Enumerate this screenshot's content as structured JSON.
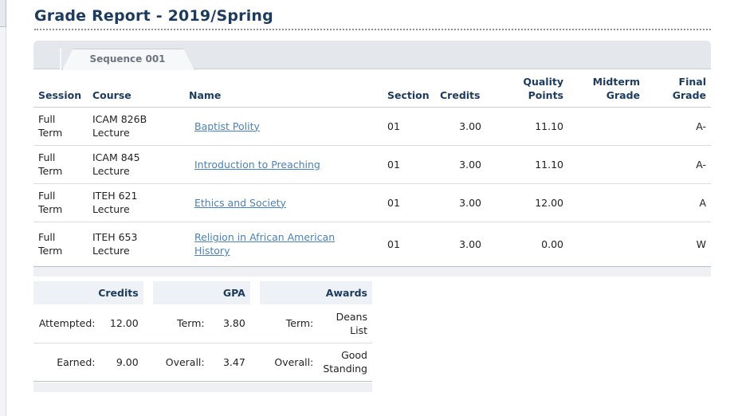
{
  "page": {
    "title": "Grade Report - 2019/Spring"
  },
  "tabs": [
    {
      "label": "Sequence 001"
    }
  ],
  "grades": {
    "headers": {
      "session": "Session",
      "course": "Course",
      "name": "Name",
      "section": "Section",
      "credits": "Credits",
      "quality_points": [
        "Quality",
        "Points"
      ],
      "midterm_grade": [
        "Midterm",
        "Grade"
      ],
      "final_grade": [
        "Final",
        "Grade"
      ]
    },
    "rows": [
      {
        "session": [
          "Full",
          "Term"
        ],
        "course": [
          "ICAM 826B",
          "Lecture"
        ],
        "name": "Baptist Polity",
        "section": "01",
        "credits": "3.00",
        "quality_points": "11.10",
        "midterm_grade": "",
        "final_grade": "A-"
      },
      {
        "session": [
          "Full",
          "Term"
        ],
        "course": [
          "ICAM 845",
          "Lecture"
        ],
        "name": "Introduction to Preaching",
        "section": "01",
        "credits": "3.00",
        "quality_points": "11.10",
        "midterm_grade": "",
        "final_grade": "A-"
      },
      {
        "session": [
          "Full",
          "Term"
        ],
        "course": [
          "ITEH 621",
          "Lecture"
        ],
        "name": "Ethics and Society",
        "section": "01",
        "credits": "3.00",
        "quality_points": "12.00",
        "midterm_grade": "",
        "final_grade": "A"
      },
      {
        "session": [
          "Full",
          "Term"
        ],
        "course": [
          "ITEH 653",
          "Lecture"
        ],
        "name": [
          "Religion in African American",
          "History"
        ],
        "section": "01",
        "credits": "3.00",
        "quality_points": "0.00",
        "midterm_grade": "",
        "final_grade": "W"
      }
    ]
  },
  "summary": {
    "headers": {
      "credits": "Credits",
      "gpa": "GPA",
      "awards": "Awards"
    },
    "rows": [
      {
        "credits_label": "Attempted:",
        "credits_value": "12.00",
        "gpa_label": "Term:",
        "gpa_value": "3.80",
        "awards_label": "Term:",
        "awards_value": [
          "Deans",
          "List"
        ]
      },
      {
        "credits_label": "Earned:",
        "credits_value": "9.00",
        "gpa_label": "Overall:",
        "gpa_value": "3.47",
        "awards_label": "Overall:",
        "awards_value": [
          "Good",
          "Standing"
        ]
      }
    ]
  }
}
